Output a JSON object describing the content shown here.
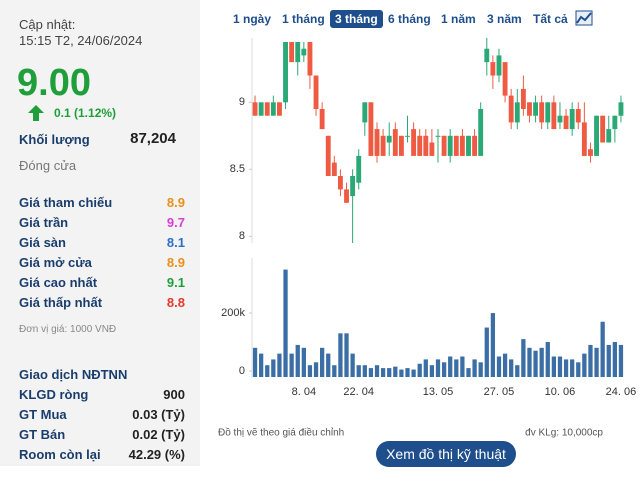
{
  "sidebar": {
    "update_label": "Cập nhật:",
    "update_time": "15:15 T2, 24/06/2024",
    "price": "9.00",
    "change": "0.1 (1.12%)",
    "volume_label": "Khối lượng",
    "volume": "87,204",
    "status": "Đóng cửa",
    "price_rows": [
      {
        "label": "Giá tham chiếu",
        "value": "8.9",
        "color": "#e8901c"
      },
      {
        "label": "Giá trần",
        "value": "9.7",
        "color": "#d63fd6"
      },
      {
        "label": "Giá sàn",
        "value": "8.1",
        "color": "#2a6fc9"
      },
      {
        "label": "Giá mở cửa",
        "value": "8.9",
        "color": "#e8901c"
      },
      {
        "label": "Giá cao nhất",
        "value": "9.1",
        "color": "#1f9e3a"
      },
      {
        "label": "Giá thấp nhất",
        "value": "8.8",
        "color": "#e23b2e"
      }
    ],
    "unit_note": "Đơn vị giá: 1000 VNĐ",
    "foreign_title": "Giao dịch NĐTNN",
    "foreign_rows": [
      {
        "label": "KLGD ròng",
        "value": "900"
      },
      {
        "label": "GT Mua",
        "value": "0.03 (Tỷ)"
      },
      {
        "label": "GT Bán",
        "value": "0.02 (Tỷ)"
      },
      {
        "label": "Room còn lại",
        "value": "42.29 (%)"
      }
    ]
  },
  "tabs": [
    "1 ngày",
    "1 tháng",
    "3 tháng",
    "6 tháng",
    "1 năm",
    "3 năm",
    "Tất cả"
  ],
  "active_tab": 2,
  "footer": {
    "note": "Đồ thị vẽ theo giá điều chỉnh",
    "unit": "đv KLg: 10,000cp",
    "button": "Xem đồ thị kỹ thuật"
  },
  "chart_data": [
    {
      "type": "candlestick",
      "up_color": "#2aa876",
      "down_color": "#ef5a43",
      "ylim": [
        7.95,
        9.48
      ],
      "yticks": [
        8,
        8.5,
        9
      ],
      "open": [
        9.0,
        8.9,
        9.0,
        8.9,
        9.0,
        9.0,
        9.45,
        9.3,
        9.35,
        9.45,
        9.2,
        8.95,
        8.75,
        8.55,
        8.45,
        8.35,
        8.3,
        8.4,
        8.85,
        9.0,
        8.8,
        8.75,
        8.7,
        8.8,
        8.75,
        8.75,
        8.8,
        8.75,
        8.75,
        8.7,
        8.75,
        8.75,
        8.6,
        8.75,
        8.75,
        8.6,
        8.75,
        8.6,
        9.3,
        9.3,
        9.2,
        9.3,
        9.05,
        8.85,
        9.1,
        9.0,
        8.9,
        9.0,
        8.85,
        9.0,
        8.85,
        8.9,
        8.8,
        8.95,
        8.85,
        8.65,
        8.6,
        8.9,
        8.7,
        8.8,
        8.9
      ],
      "high": [
        9.05,
        9.0,
        9.0,
        9.05,
        9.0,
        9.45,
        9.45,
        9.45,
        9.45,
        9.45,
        9.2,
        9.0,
        8.75,
        8.6,
        8.5,
        8.4,
        8.5,
        8.65,
        9.0,
        9.0,
        8.85,
        8.8,
        8.85,
        8.85,
        8.75,
        8.9,
        8.85,
        8.8,
        8.8,
        8.8,
        8.8,
        8.75,
        8.8,
        8.75,
        8.8,
        8.75,
        8.8,
        9.0,
        9.48,
        9.35,
        9.4,
        9.3,
        9.1,
        9.1,
        9.2,
        9.0,
        9.05,
        9.05,
        9.0,
        9.05,
        9.0,
        8.95,
        9.0,
        9.0,
        9.0,
        8.7,
        8.9,
        8.9,
        8.9,
        8.9,
        9.05
      ],
      "low": [
        8.9,
        8.9,
        8.9,
        8.9,
        8.9,
        8.95,
        9.3,
        9.2,
        9.3,
        9.1,
        8.9,
        8.8,
        8.45,
        8.45,
        8.3,
        8.25,
        7.95,
        8.35,
        8.75,
        8.6,
        8.55,
        8.6,
        8.6,
        8.6,
        8.6,
        8.7,
        8.6,
        8.6,
        8.6,
        8.6,
        8.55,
        8.6,
        8.55,
        8.6,
        8.6,
        8.6,
        8.6,
        8.6,
        9.2,
        9.1,
        9.15,
        9.0,
        8.8,
        8.8,
        8.9,
        8.85,
        8.85,
        8.8,
        8.8,
        8.8,
        8.8,
        8.8,
        8.75,
        8.8,
        8.6,
        8.55,
        8.6,
        8.7,
        8.7,
        8.7,
        8.85
      ],
      "close": [
        8.9,
        9.0,
        8.9,
        9.0,
        8.9,
        9.45,
        9.3,
        9.45,
        9.4,
        9.2,
        8.95,
        8.8,
        8.45,
        8.45,
        8.35,
        8.25,
        8.45,
        8.6,
        9.0,
        8.6,
        8.6,
        8.6,
        8.75,
        8.6,
        8.6,
        8.75,
        8.6,
        8.6,
        8.6,
        8.6,
        8.75,
        8.6,
        8.75,
        8.6,
        8.6,
        8.75,
        8.6,
        8.95,
        9.4,
        9.2,
        9.35,
        9.05,
        8.85,
        9.0,
        8.95,
        8.9,
        9.0,
        8.85,
        9.0,
        8.8,
        8.9,
        8.8,
        8.95,
        8.85,
        8.6,
        8.6,
        8.9,
        8.7,
        8.8,
        8.9,
        9.0
      ]
    },
    {
      "type": "bar",
      "color": "#3a6ea5",
      "ylim": [
        0,
        390000
      ],
      "yticks": [
        {
          "value": 200000,
          "label": "200k"
        },
        0
      ],
      "categories": [
        null,
        null,
        null,
        null,
        null,
        null,
        null,
        null,
        "8. 04",
        null,
        null,
        null,
        null,
        null,
        null,
        null,
        null,
        "22. 04",
        null,
        null,
        null,
        null,
        null,
        null,
        null,
        null,
        null,
        null,
        null,
        null,
        "13. 05",
        null,
        null,
        null,
        null,
        null,
        null,
        null,
        null,
        null,
        "27. 05",
        null,
        null,
        null,
        null,
        null,
        null,
        null,
        null,
        null,
        "10. 06",
        null,
        null,
        null,
        null,
        null,
        null,
        null,
        null,
        null,
        "24. 06"
      ],
      "values": [
        80000,
        60000,
        20000,
        40000,
        60000,
        350000,
        60000,
        90000,
        80000,
        20000,
        30000,
        80000,
        60000,
        20000,
        130000,
        130000,
        60000,
        20000,
        20000,
        10000,
        20000,
        10000,
        10000,
        15000,
        5000,
        10000,
        5000,
        25000,
        40000,
        20000,
        40000,
        30000,
        50000,
        40000,
        50000,
        10000,
        40000,
        30000,
        150000,
        200000,
        50000,
        60000,
        40000,
        20000,
        110000,
        80000,
        70000,
        80000,
        100000,
        50000,
        50000,
        40000,
        40000,
        30000,
        60000,
        90000,
        80000,
        170000,
        90000,
        100000,
        90000
      ]
    }
  ]
}
